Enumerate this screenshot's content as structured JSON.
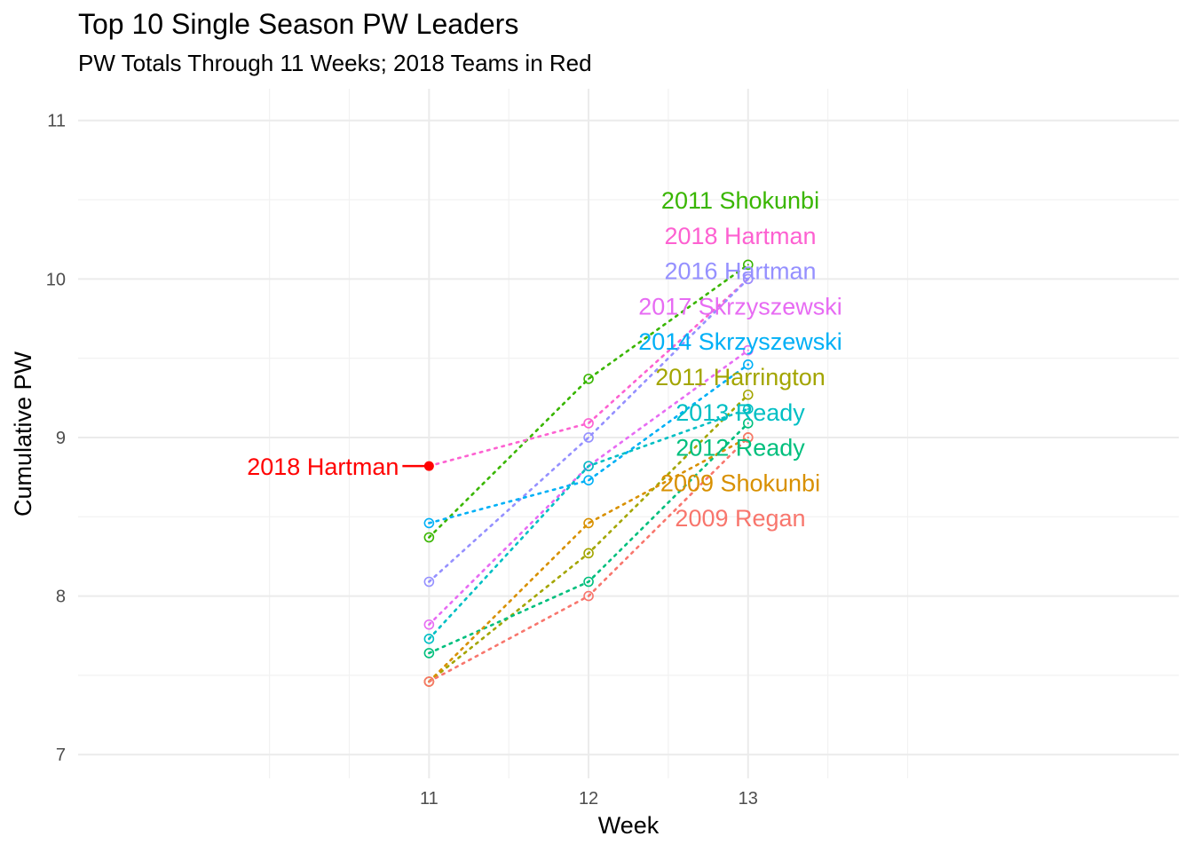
{
  "chart_data": {
    "type": "line",
    "title": "Top 10 Single Season PW Leaders",
    "subtitle": "PW Totals Through 11 Weeks; 2018 Teams in Red",
    "xlabel": "Week",
    "ylabel": "Cumulative PW",
    "xlim": [
      8.8,
      15.7
    ],
    "ylim": [
      6.85,
      11.2
    ],
    "x_ticks": [
      11,
      12,
      13
    ],
    "x_minor_gridlines": [
      10,
      10.5,
      11.5,
      12.5,
      13.5,
      14
    ],
    "y_ticks": [
      7,
      8,
      9,
      10,
      11
    ],
    "grid": true,
    "legend": "none",
    "line_style": "dotted",
    "marker": "open-circle",
    "x": [
      11,
      12,
      13
    ],
    "series": [
      {
        "name": "2011 Shokunbi",
        "color": "#39b600",
        "values": [
          8.37,
          9.37,
          10.09
        ]
      },
      {
        "name": "2018 Hartman",
        "color": "#fd61d1",
        "values": [
          8.82,
          9.09,
          10.0
        ]
      },
      {
        "name": "2016 Hartman",
        "color": "#9590ff",
        "values": [
          8.09,
          9.0,
          10.0
        ]
      },
      {
        "name": "2017 Skrzyszewski",
        "color": "#e76bf3",
        "values": [
          7.82,
          8.82,
          9.55
        ]
      },
      {
        "name": "2014 Skrzyszewski",
        "color": "#00b0f6",
        "values": [
          8.46,
          8.73,
          9.46
        ]
      },
      {
        "name": "2011 Harrington",
        "color": "#a3a500",
        "values": [
          7.46,
          8.27,
          9.27
        ]
      },
      {
        "name": "2013 Ready",
        "color": "#00bfc4",
        "values": [
          7.73,
          8.82,
          9.18
        ]
      },
      {
        "name": "2012 Ready",
        "color": "#00bf7d",
        "values": [
          7.64,
          8.09,
          9.09
        ]
      },
      {
        "name": "2009 Shokunbi",
        "color": "#d89000",
        "values": [
          7.46,
          8.46,
          9.0
        ]
      },
      {
        "name": "2009 Regan",
        "color": "#f8766d",
        "values": [
          7.46,
          8.0,
          9.0
        ]
      }
    ],
    "highlight": {
      "label": "2018 Hartman",
      "x": 11,
      "y": 8.82,
      "color": "#ff0000"
    }
  }
}
